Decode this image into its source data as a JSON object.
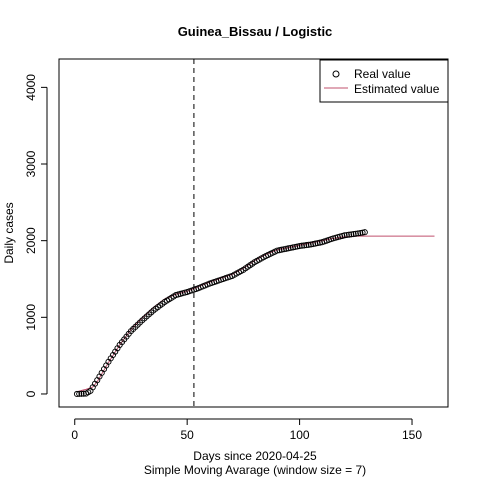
{
  "chart_data": {
    "type": "scatter",
    "title": "Guinea_Bissau / Logistic",
    "xlabel": "Days since 2020-04-25",
    "subxlabel": "Simple Moving Avarage (window size = 7)",
    "ylabel": "Daily cases",
    "xlim": [
      -7,
      166
    ],
    "ylim": [
      -170,
      4370
    ],
    "x_ticks": [
      0,
      50,
      100,
      150
    ],
    "y_ticks": [
      0,
      1000,
      2000,
      3000,
      4000
    ],
    "vline_x": 53,
    "legend": {
      "position": "top-right",
      "entries": [
        "Real value",
        "Estimated value"
      ]
    },
    "series": [
      {
        "name": "Real value",
        "style": "points",
        "color": "#000000",
        "knots": [
          [
            1,
            0
          ],
          [
            5,
            5
          ],
          [
            7,
            40
          ],
          [
            10,
            180
          ],
          [
            15,
            420
          ],
          [
            20,
            640
          ],
          [
            25,
            820
          ],
          [
            30,
            960
          ],
          [
            35,
            1090
          ],
          [
            40,
            1200
          ],
          [
            45,
            1290
          ],
          [
            50,
            1330
          ],
          [
            55,
            1380
          ],
          [
            60,
            1440
          ],
          [
            65,
            1490
          ],
          [
            70,
            1540
          ],
          [
            75,
            1620
          ],
          [
            80,
            1720
          ],
          [
            85,
            1800
          ],
          [
            90,
            1870
          ],
          [
            95,
            1900
          ],
          [
            100,
            1930
          ],
          [
            105,
            1950
          ],
          [
            110,
            1980
          ],
          [
            115,
            2030
          ],
          [
            120,
            2070
          ],
          [
            125,
            2090
          ],
          [
            129,
            2110
          ]
        ]
      },
      {
        "name": "Estimated value",
        "style": "line",
        "color": "#c0506e",
        "knots": [
          [
            1,
            30
          ],
          [
            5,
            60
          ],
          [
            8,
            90
          ],
          [
            10,
            160
          ],
          [
            15,
            410
          ],
          [
            20,
            640
          ],
          [
            25,
            840
          ],
          [
            30,
            990
          ],
          [
            35,
            1130
          ],
          [
            40,
            1240
          ],
          [
            45,
            1300
          ],
          [
            50,
            1340
          ],
          [
            55,
            1400
          ],
          [
            60,
            1460
          ],
          [
            65,
            1510
          ],
          [
            70,
            1560
          ],
          [
            75,
            1640
          ],
          [
            80,
            1740
          ],
          [
            85,
            1820
          ],
          [
            90,
            1880
          ],
          [
            95,
            1910
          ],
          [
            100,
            1940
          ],
          [
            105,
            1970
          ],
          [
            110,
            2000
          ],
          [
            115,
            2030
          ],
          [
            120,
            2050
          ],
          [
            125,
            2060
          ],
          [
            135,
            2060
          ],
          [
            160,
            2060
          ]
        ]
      }
    ]
  }
}
